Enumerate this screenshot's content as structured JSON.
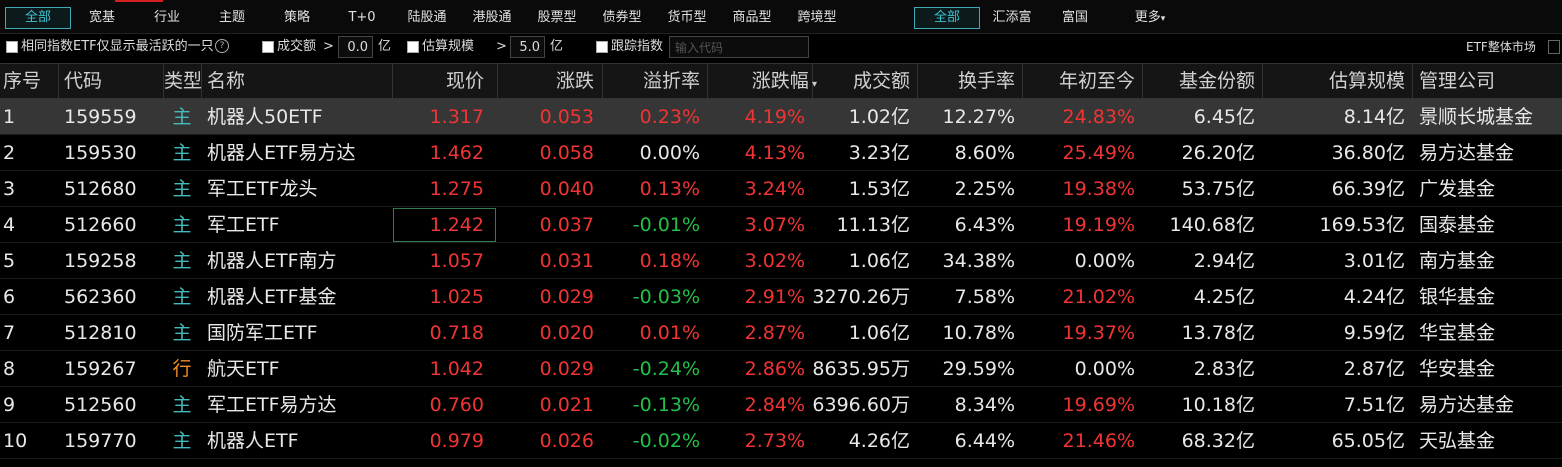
{
  "tabs": [
    "全部",
    "宽基",
    "行业",
    "主题",
    "策略",
    "T+0",
    "陆股通",
    "港股通",
    "股票型",
    "债券型",
    "货币型",
    "商品型",
    "跨境型"
  ],
  "company_tabs": [
    "全部",
    "汇添富",
    "富国",
    "更多"
  ],
  "filters": {
    "active_only": "相同指数ETF仅显示最活跃的一只",
    "volume": "成交额",
    "volume_op": ">",
    "volume_value": "0.0",
    "volume_unit": "亿",
    "scale": "估算规模",
    "scale_op": ">",
    "scale_value": "5.0",
    "scale_unit": "亿",
    "track": "跟踪指数",
    "track_placeholder": "输入代码",
    "market": "ETF整体市场"
  },
  "table": {
    "columns": [
      "序号",
      "代码",
      "类型",
      "名称",
      "现价",
      "涨跌",
      "溢折率",
      "涨跌幅",
      "成交额",
      "换手率",
      "年初至今",
      "基金份额",
      "估算规模",
      "管理公司"
    ],
    "rows": [
      [
        "1",
        "159559",
        "主",
        "机器人50ETF",
        "1.317",
        "0.053",
        "0.23%",
        "4.19%",
        "1.02亿",
        "12.27%",
        "24.83%",
        "6.45亿",
        "8.14亿",
        "景顺长城基金"
      ],
      [
        "2",
        "159530",
        "主",
        "机器人ETF易方达",
        "1.462",
        "0.058",
        "0.00%",
        "4.13%",
        "3.23亿",
        "8.60%",
        "25.49%",
        "26.20亿",
        "36.80亿",
        "易方达基金"
      ],
      [
        "3",
        "512680",
        "主",
        "军工ETF龙头",
        "1.275",
        "0.040",
        "0.13%",
        "3.24%",
        "1.53亿",
        "2.25%",
        "19.38%",
        "53.75亿",
        "66.39亿",
        "广发基金"
      ],
      [
        "4",
        "512660",
        "主",
        "军工ETF",
        "1.242",
        "0.037",
        "-0.01%",
        "3.07%",
        "11.13亿",
        "6.43%",
        "19.19%",
        "140.68亿",
        "169.53亿",
        "国泰基金"
      ],
      [
        "5",
        "159258",
        "主",
        "机器人ETF南方",
        "1.057",
        "0.031",
        "0.18%",
        "3.02%",
        "1.06亿",
        "34.38%",
        "0.00%",
        "2.94亿",
        "3.01亿",
        "南方基金"
      ],
      [
        "6",
        "562360",
        "主",
        "机器人ETF基金",
        "1.025",
        "0.029",
        "-0.03%",
        "2.91%",
        "3270.26万",
        "7.58%",
        "21.02%",
        "4.25亿",
        "4.24亿",
        "银华基金"
      ],
      [
        "7",
        "512810",
        "主",
        "国防军工ETF",
        "0.718",
        "0.020",
        "0.01%",
        "2.87%",
        "1.06亿",
        "10.78%",
        "19.37%",
        "13.78亿",
        "9.59亿",
        "华宝基金"
      ],
      [
        "8",
        "159267",
        "行",
        "航天ETF",
        "1.042",
        "0.029",
        "-0.24%",
        "2.86%",
        "8635.95万",
        "29.59%",
        "0.00%",
        "2.83亿",
        "2.87亿",
        "华安基金"
      ],
      [
        "9",
        "512560",
        "主",
        "军工ETF易方达",
        "0.760",
        "0.021",
        "-0.13%",
        "2.84%",
        "6396.60万",
        "8.34%",
        "19.69%",
        "10.18亿",
        "7.51亿",
        "易方达基金"
      ],
      [
        "10",
        "159770",
        "主",
        "机器人ETF",
        "0.979",
        "0.026",
        "-0.02%",
        "2.73%",
        "4.26亿",
        "6.44%",
        "21.46%",
        "68.32亿",
        "65.05亿",
        "天弘基金"
      ]
    ]
  }
}
